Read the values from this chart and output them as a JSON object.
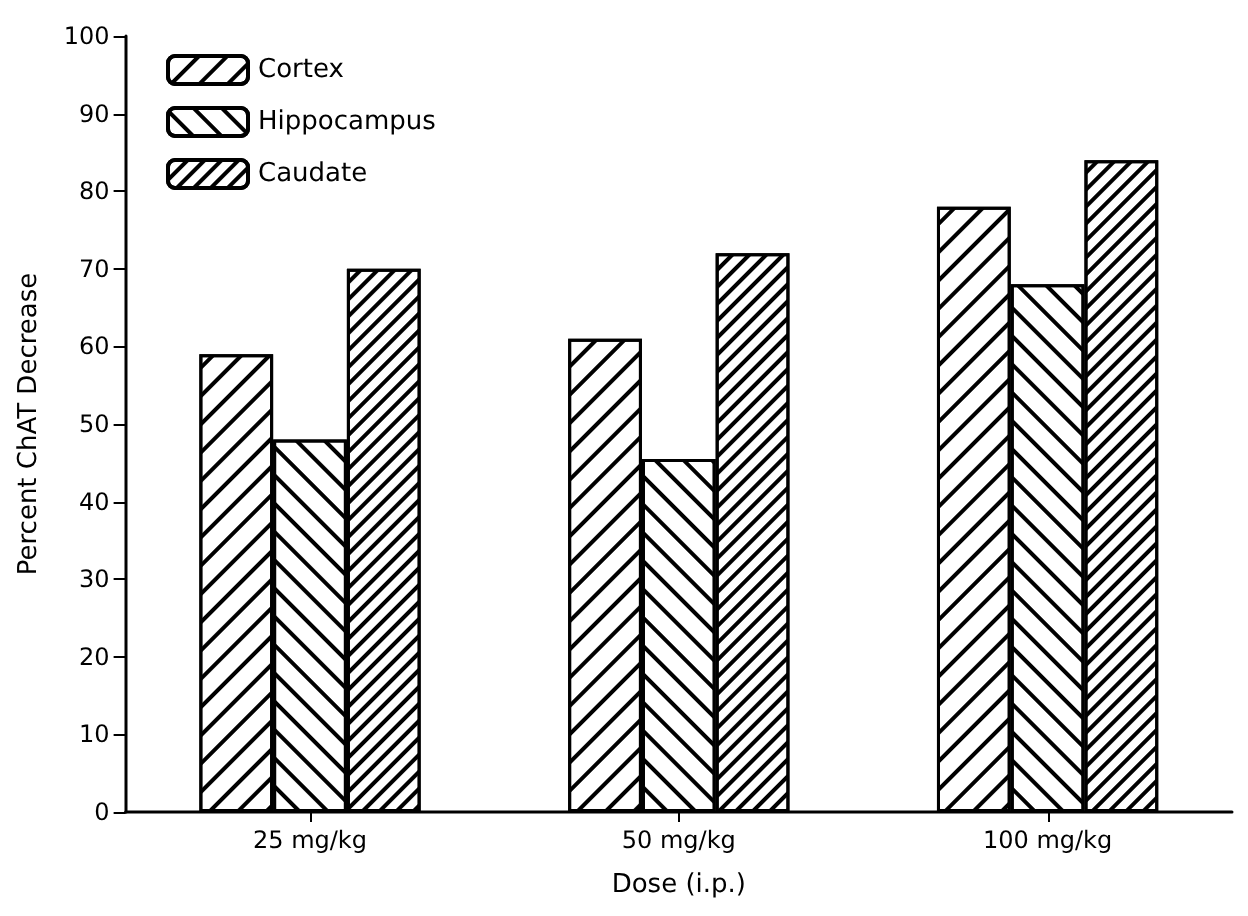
{
  "chart_data": {
    "type": "bar",
    "xlabel": "Dose (i.p.)",
    "ylabel": "Percent ChAT Decrease",
    "categories": [
      "25 mg/kg",
      "50 mg/kg",
      "100 mg/kg"
    ],
    "series": [
      {
        "name": "Cortex",
        "color": "#ffffff",
        "values": [
          59,
          61,
          78
        ]
      },
      {
        "name": "Hippocampus",
        "color": "#ffffff",
        "values": [
          48,
          45.5,
          68
        ]
      },
      {
        "name": "Caudate",
        "color": "#ffffff",
        "values": [
          70,
          72,
          84
        ]
      }
    ],
    "ylim": [
      0,
      100
    ],
    "yticks": [
      0,
      10,
      20,
      30,
      40,
      50,
      60,
      70,
      80,
      90,
      100
    ],
    "grid": false,
    "legend": "top left"
  }
}
